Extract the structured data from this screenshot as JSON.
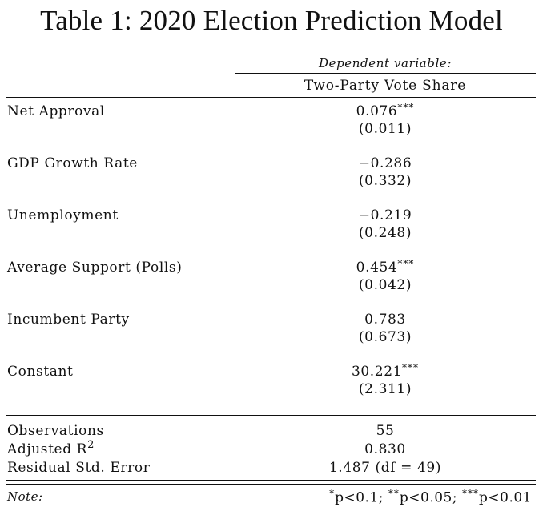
{
  "title": "Table 1: 2020 Election Prediction Model",
  "dependent_variable_label": "Dependent variable:",
  "dependent_variable": "Two-Party Vote Share",
  "coefficients": [
    {
      "label": "Net Approval",
      "estimate": "0.076",
      "stars": "***",
      "se": "(0.011)"
    },
    {
      "label": "GDP Growth Rate",
      "estimate": "−0.286",
      "stars": "",
      "se": "(0.332)"
    },
    {
      "label": "Unemployment",
      "estimate": "−0.219",
      "stars": "",
      "se": "(0.248)"
    },
    {
      "label": "Average Support (Polls)",
      "estimate": "0.454",
      "stars": "***",
      "se": "(0.042)"
    },
    {
      "label": "Incumbent Party",
      "estimate": "0.783",
      "stars": "",
      "se": "(0.673)"
    },
    {
      "label": "Constant",
      "estimate": "30.221",
      "stars": "***",
      "se": "(2.311)"
    }
  ],
  "stats": [
    {
      "label": "Observations",
      "value": "55"
    },
    {
      "label": "Adjusted R",
      "label_sup": "2",
      "value": "0.830"
    },
    {
      "label": "Residual Std. Error",
      "value": "1.487 (df = 49)"
    }
  ],
  "note": {
    "label": "Note:",
    "sig1_stars": "*",
    "sig1_text": "p<0.1;",
    "sig2_stars": "**",
    "sig2_text": "p<0.05;",
    "sig3_stars": "***",
    "sig3_text": "p<0.01"
  }
}
